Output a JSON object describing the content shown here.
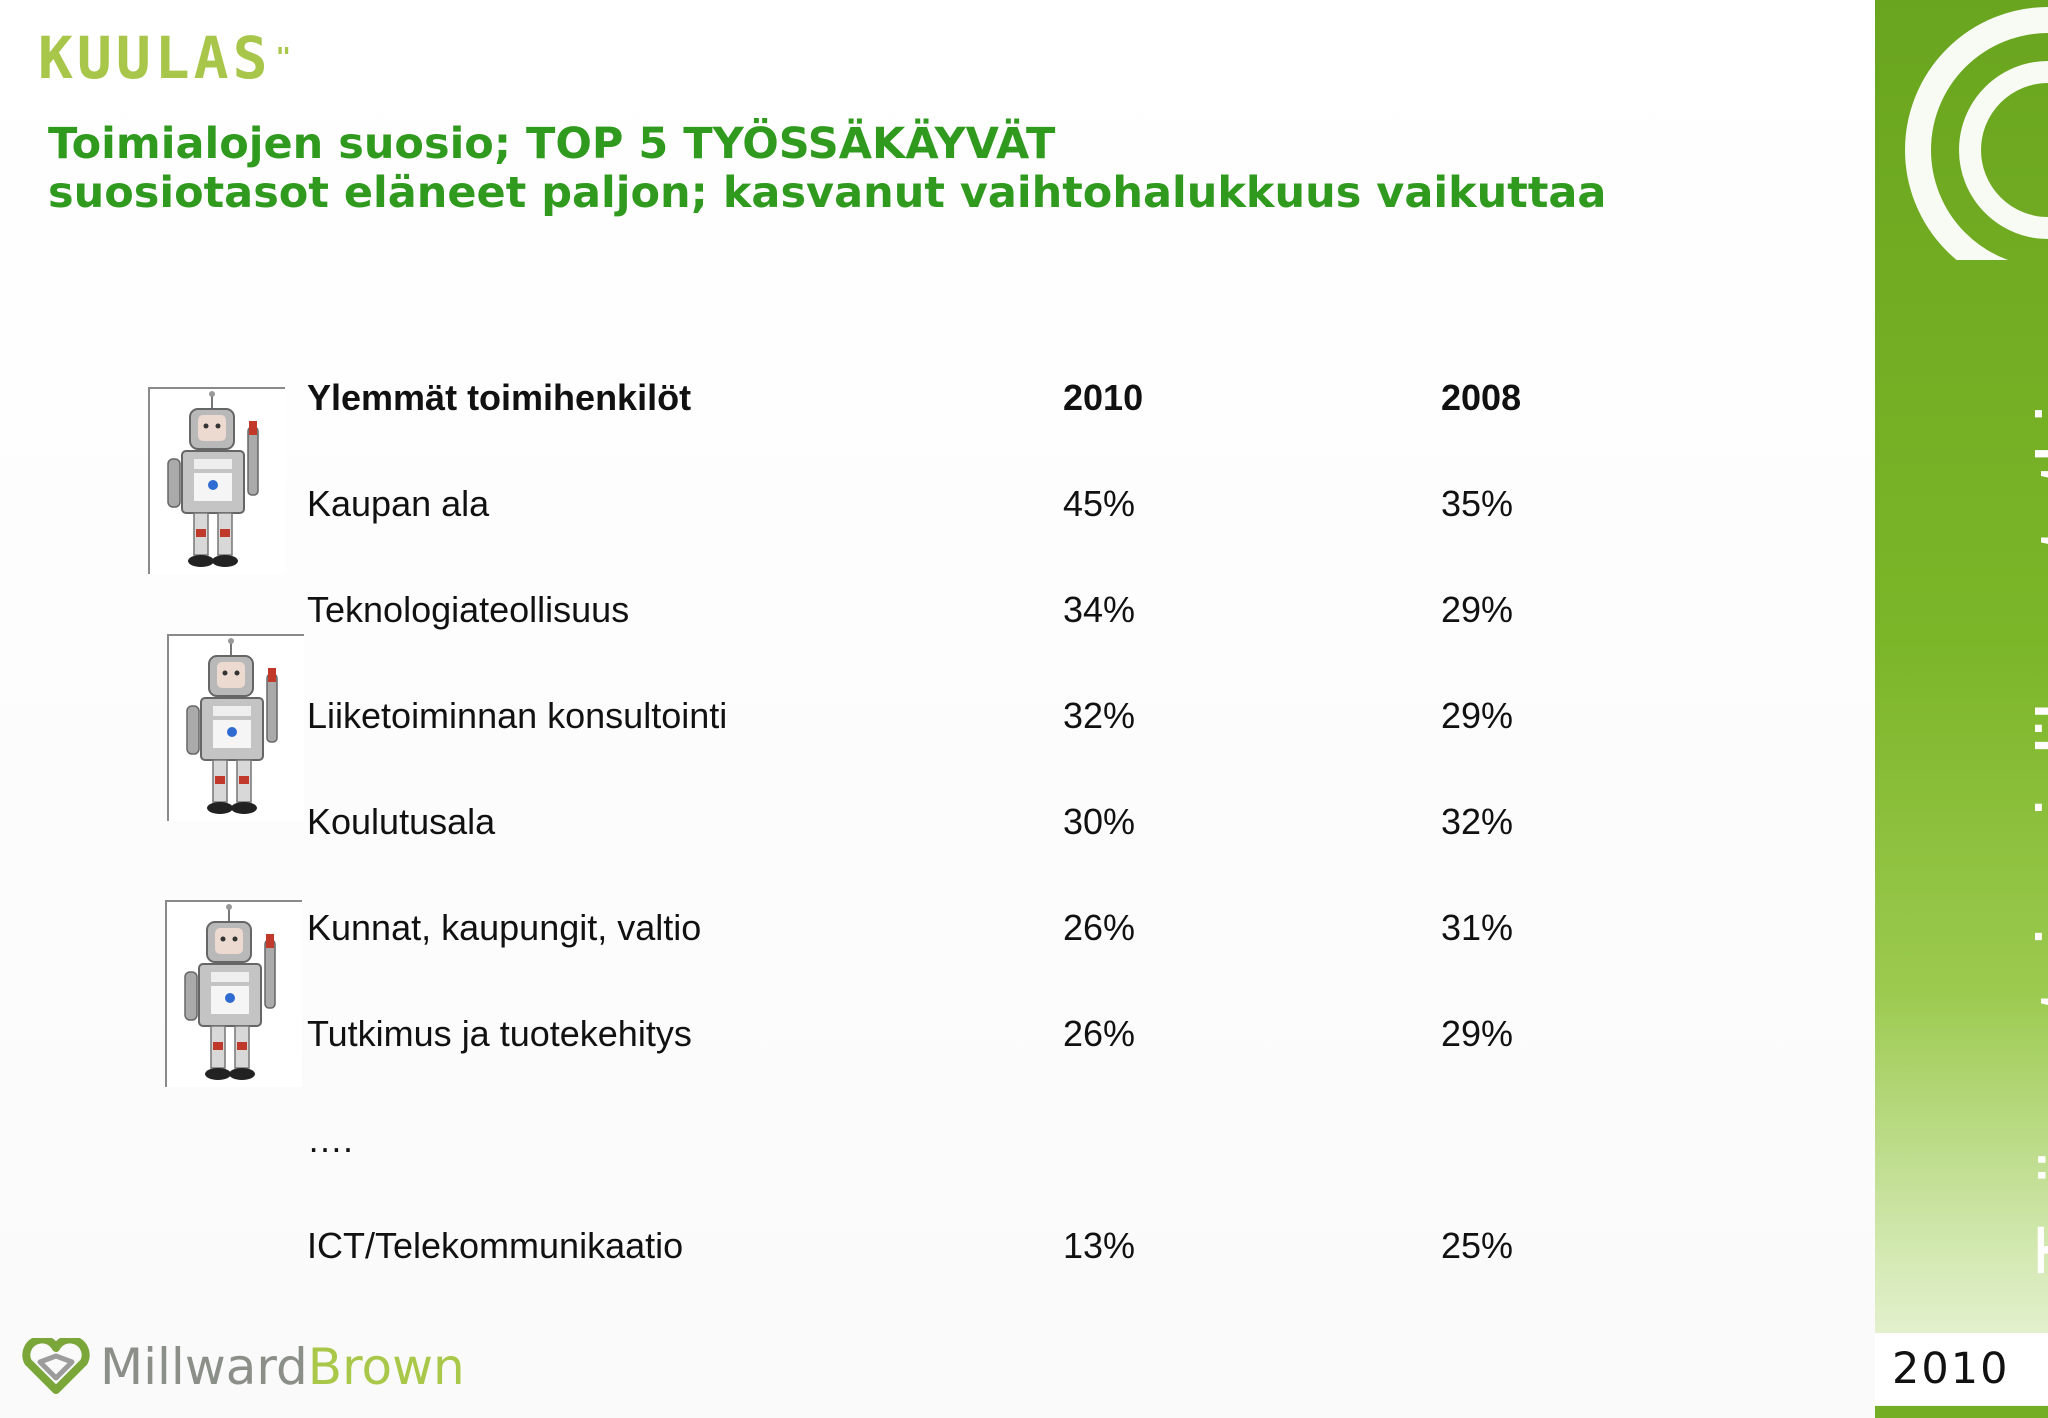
{
  "logo": {
    "brand": "KUULAS",
    "mark": "\""
  },
  "title": {
    "line1": "Toimialojen suosio; TOP 5 TYÖSSÄKÄYVÄT",
    "line2": "suosiotasot eläneet paljon; kasvanut vaihtohalukkuus vaikuttaa"
  },
  "table": {
    "headers": [
      "Ylemmät toimihenkilöt",
      "2010",
      "2008"
    ],
    "rows": [
      [
        "Kaupan ala",
        "45%",
        "35%"
      ],
      [
        "Teknologiateollisuus",
        "34%",
        "29%"
      ],
      [
        "Liiketoiminnan konsultointi",
        "32%",
        "29%"
      ],
      [
        "Koulutusala",
        "30%",
        "32%"
      ],
      [
        "Kunnat, kaupungit, valtio",
        "26%",
        "31%"
      ],
      [
        "Tutkimus ja tuotekehitys",
        "26%",
        "29%"
      ],
      [
        "….",
        "",
        ""
      ],
      [
        "ICT/Telekommunikaatio",
        "13%",
        "25%"
      ]
    ]
  },
  "sidebar": {
    "vertical_title": "Työnantajamielikuvatutkimus",
    "year": "2010"
  },
  "footer": {
    "brand_part1": "Millward",
    "brand_part2": "Brown"
  },
  "icons": {
    "robot": "robot-illustration-icon",
    "mb": "millward-brown-heart-icon"
  },
  "colors": {
    "title_green": "#2f9a1e",
    "sidebar_green": "#7bb528",
    "logo_green": "#a7c64a"
  }
}
